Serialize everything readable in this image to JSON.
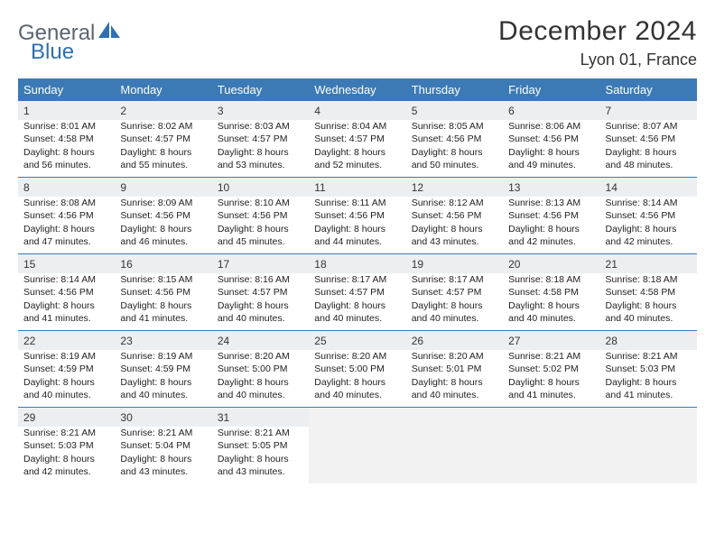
{
  "logo": {
    "text1": "General",
    "text2": "Blue",
    "color_gray": "#5a6570",
    "color_blue": "#2f6fb0"
  },
  "title": "December 2024",
  "location": "Lyon 01, France",
  "colors": {
    "header_bg": "#3b7ab5",
    "header_fg": "#ffffff",
    "daynum_bg": "#eceff1",
    "rule": "#3b7ab5",
    "empty_bg": "#f2f2f2"
  },
  "weekdays": [
    "Sunday",
    "Monday",
    "Tuesday",
    "Wednesday",
    "Thursday",
    "Friday",
    "Saturday"
  ],
  "weeks": [
    [
      {
        "n": "1",
        "sr": "8:01 AM",
        "ss": "4:58 PM",
        "dl": "Daylight: 8 hours and 56 minutes."
      },
      {
        "n": "2",
        "sr": "8:02 AM",
        "ss": "4:57 PM",
        "dl": "Daylight: 8 hours and 55 minutes."
      },
      {
        "n": "3",
        "sr": "8:03 AM",
        "ss": "4:57 PM",
        "dl": "Daylight: 8 hours and 53 minutes."
      },
      {
        "n": "4",
        "sr": "8:04 AM",
        "ss": "4:57 PM",
        "dl": "Daylight: 8 hours and 52 minutes."
      },
      {
        "n": "5",
        "sr": "8:05 AM",
        "ss": "4:56 PM",
        "dl": "Daylight: 8 hours and 50 minutes."
      },
      {
        "n": "6",
        "sr": "8:06 AM",
        "ss": "4:56 PM",
        "dl": "Daylight: 8 hours and 49 minutes."
      },
      {
        "n": "7",
        "sr": "8:07 AM",
        "ss": "4:56 PM",
        "dl": "Daylight: 8 hours and 48 minutes."
      }
    ],
    [
      {
        "n": "8",
        "sr": "8:08 AM",
        "ss": "4:56 PM",
        "dl": "Daylight: 8 hours and 47 minutes."
      },
      {
        "n": "9",
        "sr": "8:09 AM",
        "ss": "4:56 PM",
        "dl": "Daylight: 8 hours and 46 minutes."
      },
      {
        "n": "10",
        "sr": "8:10 AM",
        "ss": "4:56 PM",
        "dl": "Daylight: 8 hours and 45 minutes."
      },
      {
        "n": "11",
        "sr": "8:11 AM",
        "ss": "4:56 PM",
        "dl": "Daylight: 8 hours and 44 minutes."
      },
      {
        "n": "12",
        "sr": "8:12 AM",
        "ss": "4:56 PM",
        "dl": "Daylight: 8 hours and 43 minutes."
      },
      {
        "n": "13",
        "sr": "8:13 AM",
        "ss": "4:56 PM",
        "dl": "Daylight: 8 hours and 42 minutes."
      },
      {
        "n": "14",
        "sr": "8:14 AM",
        "ss": "4:56 PM",
        "dl": "Daylight: 8 hours and 42 minutes."
      }
    ],
    [
      {
        "n": "15",
        "sr": "8:14 AM",
        "ss": "4:56 PM",
        "dl": "Daylight: 8 hours and 41 minutes."
      },
      {
        "n": "16",
        "sr": "8:15 AM",
        "ss": "4:56 PM",
        "dl": "Daylight: 8 hours and 41 minutes."
      },
      {
        "n": "17",
        "sr": "8:16 AM",
        "ss": "4:57 PM",
        "dl": "Daylight: 8 hours and 40 minutes."
      },
      {
        "n": "18",
        "sr": "8:17 AM",
        "ss": "4:57 PM",
        "dl": "Daylight: 8 hours and 40 minutes."
      },
      {
        "n": "19",
        "sr": "8:17 AM",
        "ss": "4:57 PM",
        "dl": "Daylight: 8 hours and 40 minutes."
      },
      {
        "n": "20",
        "sr": "8:18 AM",
        "ss": "4:58 PM",
        "dl": "Daylight: 8 hours and 40 minutes."
      },
      {
        "n": "21",
        "sr": "8:18 AM",
        "ss": "4:58 PM",
        "dl": "Daylight: 8 hours and 40 minutes."
      }
    ],
    [
      {
        "n": "22",
        "sr": "8:19 AM",
        "ss": "4:59 PM",
        "dl": "Daylight: 8 hours and 40 minutes."
      },
      {
        "n": "23",
        "sr": "8:19 AM",
        "ss": "4:59 PM",
        "dl": "Daylight: 8 hours and 40 minutes."
      },
      {
        "n": "24",
        "sr": "8:20 AM",
        "ss": "5:00 PM",
        "dl": "Daylight: 8 hours and 40 minutes."
      },
      {
        "n": "25",
        "sr": "8:20 AM",
        "ss": "5:00 PM",
        "dl": "Daylight: 8 hours and 40 minutes."
      },
      {
        "n": "26",
        "sr": "8:20 AM",
        "ss": "5:01 PM",
        "dl": "Daylight: 8 hours and 40 minutes."
      },
      {
        "n": "27",
        "sr": "8:21 AM",
        "ss": "5:02 PM",
        "dl": "Daylight: 8 hours and 41 minutes."
      },
      {
        "n": "28",
        "sr": "8:21 AM",
        "ss": "5:03 PM",
        "dl": "Daylight: 8 hours and 41 minutes."
      }
    ],
    [
      {
        "n": "29",
        "sr": "8:21 AM",
        "ss": "5:03 PM",
        "dl": "Daylight: 8 hours and 42 minutes."
      },
      {
        "n": "30",
        "sr": "8:21 AM",
        "ss": "5:04 PM",
        "dl": "Daylight: 8 hours and 43 minutes."
      },
      {
        "n": "31",
        "sr": "8:21 AM",
        "ss": "5:05 PM",
        "dl": "Daylight: 8 hours and 43 minutes."
      },
      null,
      null,
      null,
      null
    ]
  ]
}
